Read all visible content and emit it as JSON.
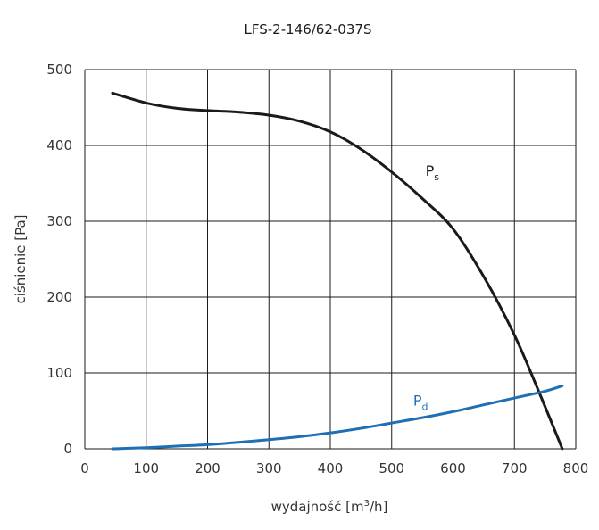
{
  "chart_data": {
    "type": "line",
    "title": "LFS-2-146/62-037S",
    "xlabel": {
      "main": "wydajność [m",
      "sup": "3",
      "tail": "/h]"
    },
    "ylabel": "ciśnienie [Pa]",
    "xlim": [
      0,
      800
    ],
    "ylim": [
      0,
      500
    ],
    "x_ticks": [
      0,
      100,
      200,
      300,
      400,
      500,
      600,
      700,
      800
    ],
    "y_ticks": [
      0,
      100,
      200,
      300,
      400,
      500
    ],
    "x_tick_labels": [
      "0",
      "100",
      "200",
      "300",
      "400",
      "500",
      "600",
      "700",
      "800"
    ],
    "y_tick_labels": [
      "0",
      "100",
      "200",
      "300",
      "400",
      "500"
    ],
    "grid": true,
    "series": [
      {
        "name": "Ps",
        "label_main": "P",
        "label_sub": "s",
        "color": "#1a1a1a",
        "x": [
          45,
          100,
          150,
          200,
          250,
          300,
          350,
          400,
          450,
          500,
          550,
          600,
          650,
          700,
          740,
          778
        ],
        "y": [
          469,
          456,
          449,
          446,
          444,
          440,
          432,
          418,
          395,
          365,
          330,
          290,
          227,
          150,
          75,
          0
        ]
      },
      {
        "name": "Pd",
        "label_main": "P",
        "label_sub": "d",
        "color": "#1f6fb5",
        "x": [
          45,
          100,
          150,
          200,
          250,
          300,
          350,
          400,
          450,
          500,
          550,
          600,
          650,
          700,
          750,
          778
        ],
        "y": [
          0,
          1.5,
          3.5,
          5.5,
          8.5,
          12,
          16,
          21,
          27,
          34,
          41,
          49,
          58,
          67,
          76,
          83
        ]
      }
    ]
  }
}
